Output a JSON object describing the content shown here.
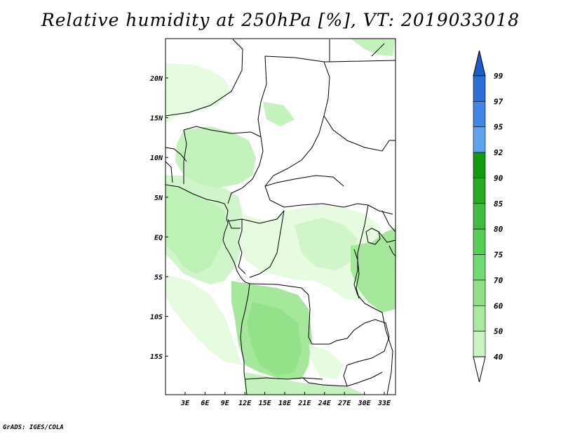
{
  "title": "Relative humidity at 250hPa [%], VT: 2019033018",
  "footer": "GrADS: IGES/COLA",
  "map": {
    "lat_labels": [
      "20N",
      "15N",
      "10N",
      "5N",
      "EQ",
      "5S",
      "10S",
      "15S"
    ],
    "lon_labels": [
      "3E",
      "6E",
      "9E",
      "12E",
      "15E",
      "18E",
      "21E",
      "24E",
      "27E",
      "30E",
      "33E"
    ],
    "shading_colors": {
      "40-50": "#e6fbe0",
      "50-60": "#c4f2bd",
      "60-70": "#a5e89c",
      "70-75": "#8fe086"
    },
    "boundary_color": "#000000"
  },
  "colorbar": {
    "labels": [
      "99",
      "97",
      "95",
      "92",
      "90",
      "85",
      "80",
      "75",
      "70",
      "60",
      "50",
      "40"
    ],
    "colors": [
      "#2a6fd6",
      "#3f86e6",
      "#5fa2ee",
      "#129b12",
      "#27ab27",
      "#40bd40",
      "#57cf57",
      "#72da72",
      "#8fe086",
      "#a9ea9f",
      "#c9f4c2",
      "#e6fbe0"
    ],
    "top_cap_color": "#1a5cc8",
    "bottom_cap_color": "#ffffff"
  }
}
